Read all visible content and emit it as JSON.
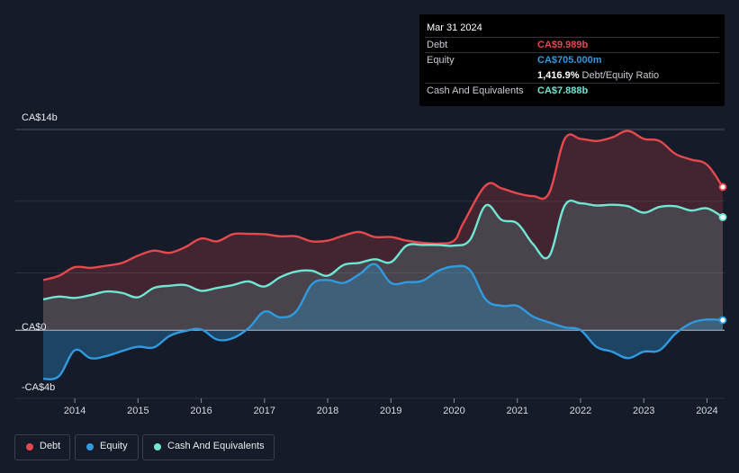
{
  "tooltip": {
    "date": "Mar 31 2024",
    "rows": [
      {
        "label": "Debt",
        "value": "CA$9.989b",
        "color": "#e5484d"
      },
      {
        "label": "Equity",
        "value": "CA$705.000m",
        "color": "#2f9ae0"
      },
      {
        "label": "",
        "value": "1,416.9%",
        "extra": "Debt/Equity Ratio",
        "color": "#ffffff"
      },
      {
        "label": "Cash And Equivalents",
        "value": "CA$7.888b",
        "color": "#6fe5d2"
      }
    ]
  },
  "legend": [
    {
      "label": "Debt",
      "color": "#e5484d"
    },
    {
      "label": "Equity",
      "color": "#2f9ae0"
    },
    {
      "label": "Cash And Equivalents",
      "color": "#6fe5d2"
    }
  ],
  "chart_data": {
    "type": "area",
    "title": "",
    "xlabel": "",
    "ylabel": "",
    "y_axis_labels": [
      "CA$14b",
      "CA$0",
      "-CA$4b"
    ],
    "ylim": [
      -4,
      14
    ],
    "xlim": [
      2013.5,
      2024.25
    ],
    "x_tick_labels": [
      "2014",
      "2015",
      "2016",
      "2017",
      "2018",
      "2019",
      "2020",
      "2021",
      "2022",
      "2023",
      "2024"
    ],
    "x_ticks": [
      2014,
      2015,
      2016,
      2017,
      2018,
      2019,
      2020,
      2021,
      2022,
      2023,
      2024
    ],
    "series": [
      {
        "name": "Debt",
        "color": "#e5484d",
        "points": [
          [
            2013.5,
            3.5
          ],
          [
            2013.75,
            3.8
          ],
          [
            2014.0,
            4.4
          ],
          [
            2014.25,
            4.35
          ],
          [
            2014.5,
            4.5
          ],
          [
            2014.75,
            4.7
          ],
          [
            2015.0,
            5.2
          ],
          [
            2015.25,
            5.55
          ],
          [
            2015.5,
            5.4
          ],
          [
            2015.75,
            5.8
          ],
          [
            2016.0,
            6.4
          ],
          [
            2016.25,
            6.2
          ],
          [
            2016.5,
            6.7
          ],
          [
            2016.75,
            6.72
          ],
          [
            2017.0,
            6.7
          ],
          [
            2017.25,
            6.55
          ],
          [
            2017.5,
            6.55
          ],
          [
            2017.75,
            6.2
          ],
          [
            2018.0,
            6.25
          ],
          [
            2018.25,
            6.6
          ],
          [
            2018.5,
            6.85
          ],
          [
            2018.75,
            6.5
          ],
          [
            2019.0,
            6.5
          ],
          [
            2019.25,
            6.25
          ],
          [
            2019.5,
            6.1
          ],
          [
            2019.75,
            6.05
          ],
          [
            2020.0,
            6.25
          ],
          [
            2020.15,
            7.5
          ],
          [
            2020.5,
            10.1
          ],
          [
            2020.75,
            9.9
          ],
          [
            2021.0,
            9.55
          ],
          [
            2021.25,
            9.35
          ],
          [
            2021.5,
            9.55
          ],
          [
            2021.75,
            13.35
          ],
          [
            2022.0,
            13.35
          ],
          [
            2022.25,
            13.2
          ],
          [
            2022.5,
            13.45
          ],
          [
            2022.75,
            13.9
          ],
          [
            2023.0,
            13.35
          ],
          [
            2023.25,
            13.2
          ],
          [
            2023.5,
            12.3
          ],
          [
            2023.75,
            11.9
          ],
          [
            2024.0,
            11.55
          ],
          [
            2024.25,
            9.989
          ]
        ]
      },
      {
        "name": "Equity",
        "color": "#2f9ae0",
        "points": [
          [
            2013.5,
            -3.4
          ],
          [
            2013.75,
            -3.2
          ],
          [
            2014.0,
            -1.4
          ],
          [
            2014.25,
            -1.95
          ],
          [
            2014.5,
            -1.8
          ],
          [
            2014.75,
            -1.45
          ],
          [
            2015.0,
            -1.15
          ],
          [
            2015.25,
            -1.2
          ],
          [
            2015.5,
            -0.4
          ],
          [
            2015.75,
            -0.05
          ],
          [
            2016.0,
            0.05
          ],
          [
            2016.25,
            -0.65
          ],
          [
            2016.5,
            -0.55
          ],
          [
            2016.75,
            0.15
          ],
          [
            2017.0,
            1.3
          ],
          [
            2017.25,
            0.9
          ],
          [
            2017.5,
            1.3
          ],
          [
            2017.75,
            3.2
          ],
          [
            2018.0,
            3.5
          ],
          [
            2018.25,
            3.3
          ],
          [
            2018.5,
            3.9
          ],
          [
            2018.75,
            4.6
          ],
          [
            2019.0,
            3.3
          ],
          [
            2019.25,
            3.35
          ],
          [
            2019.5,
            3.45
          ],
          [
            2019.75,
            4.15
          ],
          [
            2020.0,
            4.45
          ],
          [
            2020.25,
            4.2
          ],
          [
            2020.5,
            2.15
          ],
          [
            2020.75,
            1.7
          ],
          [
            2021.0,
            1.7
          ],
          [
            2021.25,
            0.95
          ],
          [
            2021.5,
            0.55
          ],
          [
            2021.75,
            0.2
          ],
          [
            2022.0,
            0.0
          ],
          [
            2022.25,
            -1.15
          ],
          [
            2022.5,
            -1.5
          ],
          [
            2022.75,
            -1.95
          ],
          [
            2023.0,
            -1.5
          ],
          [
            2023.25,
            -1.4
          ],
          [
            2023.5,
            -0.25
          ],
          [
            2023.75,
            0.5
          ],
          [
            2024.0,
            0.75
          ],
          [
            2024.25,
            0.705
          ]
        ]
      },
      {
        "name": "Cash And Equivalents",
        "color": "#6fe5d2",
        "points": [
          [
            2013.5,
            2.15
          ],
          [
            2013.75,
            2.35
          ],
          [
            2014.0,
            2.25
          ],
          [
            2014.25,
            2.45
          ],
          [
            2014.5,
            2.7
          ],
          [
            2014.75,
            2.6
          ],
          [
            2015.0,
            2.3
          ],
          [
            2015.25,
            2.95
          ],
          [
            2015.5,
            3.1
          ],
          [
            2015.75,
            3.15
          ],
          [
            2016.0,
            2.75
          ],
          [
            2016.25,
            2.95
          ],
          [
            2016.5,
            3.15
          ],
          [
            2016.75,
            3.4
          ],
          [
            2017.0,
            3.05
          ],
          [
            2017.25,
            3.7
          ],
          [
            2017.5,
            4.1
          ],
          [
            2017.75,
            4.15
          ],
          [
            2018.0,
            3.8
          ],
          [
            2018.25,
            4.55
          ],
          [
            2018.5,
            4.7
          ],
          [
            2018.75,
            4.95
          ],
          [
            2019.0,
            4.75
          ],
          [
            2019.25,
            5.9
          ],
          [
            2019.5,
            5.95
          ],
          [
            2019.75,
            5.95
          ],
          [
            2020.0,
            5.9
          ],
          [
            2020.25,
            6.3
          ],
          [
            2020.5,
            8.7
          ],
          [
            2020.75,
            7.7
          ],
          [
            2021.0,
            7.45
          ],
          [
            2021.25,
            6.0
          ],
          [
            2021.5,
            5.15
          ],
          [
            2021.75,
            8.7
          ],
          [
            2022.0,
            8.85
          ],
          [
            2022.25,
            8.7
          ],
          [
            2022.5,
            8.75
          ],
          [
            2022.75,
            8.65
          ],
          [
            2023.0,
            8.2
          ],
          [
            2023.25,
            8.6
          ],
          [
            2023.5,
            8.65
          ],
          [
            2023.75,
            8.35
          ],
          [
            2024.0,
            8.5
          ],
          [
            2024.25,
            7.888
          ]
        ]
      }
    ]
  }
}
